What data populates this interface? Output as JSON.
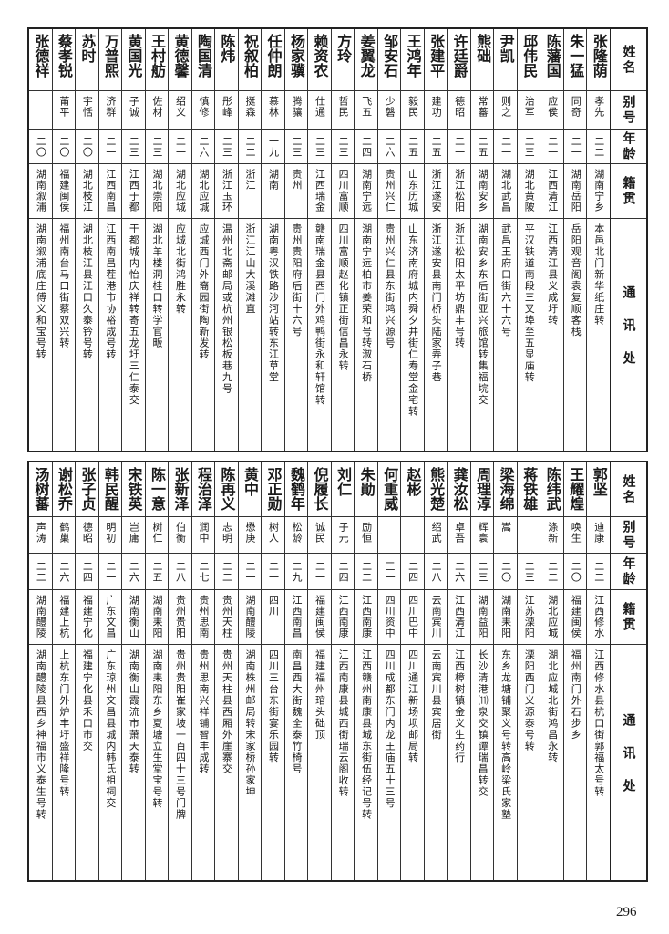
{
  "headers": {
    "name": "姓名",
    "alias": "别号",
    "age": "年龄",
    "native": "籍贯",
    "address": "通讯处"
  },
  "top_table": [
    {
      "name": "张隆荫",
      "alias": "孝先",
      "age": "二二",
      "native": "湖南宁乡",
      "address": "本邑北门新华纸庄转"
    },
    {
      "name": "朱一猛",
      "alias": "同奇",
      "age": "二一",
      "native": "湖南岳阳",
      "address": "岳阳观音阁袁复顺客栈"
    },
    {
      "name": "陈藩国",
      "alias": "应侯",
      "age": "二一",
      "native": "江西清江",
      "address": "江西清江县义成圩转"
    },
    {
      "name": "邱伟民",
      "alias": "治军",
      "age": "二三",
      "native": "湖北黄陂",
      "address": "平汉铁道南段三叉埠至五显庙转"
    },
    {
      "name": "尹凯",
      "alias": "则之",
      "age": "二一",
      "native": "湖北武昌",
      "address": "武昌王府口街六十六号"
    },
    {
      "name": "熊础",
      "alias": "常蕃",
      "age": "二五",
      "native": "湖南安乡",
      "address": "湖南安乡东后街亚兴旅馆转集福垸交"
    },
    {
      "name": "许廷爵",
      "alias": "德昭",
      "age": "二一",
      "native": "浙江松阳",
      "address": "浙江松阳太平坊鼎丰号转"
    },
    {
      "name": "张建平",
      "alias": "建功",
      "age": "二五",
      "native": "浙江遂安",
      "address": "浙江遂安县南门桥头陆家弄子巷"
    },
    {
      "name": "王鸿年",
      "alias": "毅民",
      "age": "二五",
      "native": "山东历城",
      "address": "山东济南府城内舜夕井街仁寿堂金宅转"
    },
    {
      "name": "邹安石",
      "alias": "少磐",
      "age": "二六",
      "native": "贵州兴仁",
      "address": "贵州兴仁县东街鸿兴源号"
    },
    {
      "name": "姜翼龙",
      "alias": "飞五",
      "age": "二四",
      "native": "湖南宁远",
      "address": "湖南宁远柏市姜荣和号转淑石桥"
    },
    {
      "name": "方玲",
      "alias": "哲民",
      "age": "二三",
      "native": "四川富顺",
      "address": "四川富顺赵化镇正街信昌永转"
    },
    {
      "name": "赖资农",
      "alias": "仕通",
      "age": "二三",
      "native": "江西瑞金",
      "address": "赣南瑞金县西门外鸡鸭街永和轩馆转"
    },
    {
      "name": "杨家骥",
      "alias": "腾骧",
      "age": "二三",
      "native": "贵州",
      "address": "贵州贵阳府后街十六号"
    },
    {
      "name": "任仲朗",
      "alias": "慕林",
      "age": "一九",
      "native": "湖南",
      "address": "湖南粤汉铁路沙河站转东江草堂"
    },
    {
      "name": "祝叙柏",
      "alias": "挺森",
      "age": "二二",
      "native": "浙江",
      "address": "浙江江山大溪滩直"
    },
    {
      "name": "陈炜",
      "alias": "彤峰",
      "age": "二三",
      "native": "浙江玉环",
      "address": "温州北斋邮局或杭州银松板巷九号"
    },
    {
      "name": "陶国清",
      "alias": "慎修",
      "age": "二六",
      "native": "湖北应城",
      "address": "应城西门外裔园街陶新发转"
    },
    {
      "name": "黄德馨",
      "alias": "绍义",
      "age": "二一",
      "native": "湖北应城",
      "address": "应城北街鸿胜永转"
    },
    {
      "name": "王村舫",
      "alias": "佐材",
      "age": "二三",
      "native": "湖北崇阳",
      "address": "湖北羊楼洞桂口转学官畈"
    },
    {
      "name": "黄国光",
      "alias": "子诚",
      "age": "二三",
      "native": "江西于都",
      "address": "于都城内怡庆祥转寄五龙圩三仁泰交"
    },
    {
      "name": "万普熙",
      "alias": "济群",
      "age": "二一",
      "native": "江西南昌",
      "address": "江西南昌茬港市协裕成号转"
    },
    {
      "name": "苏时",
      "alias": "宇恬",
      "age": "二〇",
      "native": "湖北枝江",
      "address": "湖北枝江县江口久泰钤号转"
    },
    {
      "name": "蔡孝锐",
      "alias": "莆平",
      "age": "二〇",
      "native": "福建闽侯",
      "address": "福州南台马口街蔡双兴转"
    },
    {
      "name": "张德祥",
      "alias": "",
      "age": "二〇",
      "native": "湖南溆浦",
      "address": "湖南溆浦底庄傅义和宝号转"
    }
  ],
  "bottom_table": [
    {
      "name": "郭坚",
      "alias": "迪康",
      "age": "二二",
      "native": "江西修水",
      "address": "江西修水县杭口街郭福太号转"
    },
    {
      "name": "王耀煌",
      "alias": "唤生",
      "age": "二〇",
      "native": "福建闽侯",
      "address": "福州南门外石步乡"
    },
    {
      "name": "陈纬武",
      "alias": "涤新",
      "age": "二二",
      "native": "湖北应城",
      "address": "湖北应城北街鸿昌永转"
    },
    {
      "name": "蒋铁雄",
      "alias": "",
      "age": "二三",
      "native": "江苏溧阳",
      "address": "溧阳西门义源泰号转"
    },
    {
      "name": "梁海绵",
      "alias": "嵩",
      "age": "二〇",
      "native": "湖南耒阳",
      "address": "东乡龙塘铺聚义号转高岭梁氏家塾"
    },
    {
      "name": "周理淳",
      "alias": "辉寰",
      "age": "二三",
      "native": "湖南益阳",
      "address": "长沙清港⑾泉交镇谭瑞昌转交"
    },
    {
      "name": "龚汝松",
      "alias": "卓吾",
      "age": "二六",
      "native": "江西清江",
      "address": "江西樟树镇金义生药行"
    },
    {
      "name": "熊光楚",
      "alias": "绍武",
      "age": "二八",
      "native": "云南宾川",
      "address": "云南宾川县宾居街"
    },
    {
      "name": "赵彬",
      "alias": "",
      "age": "二四",
      "native": "四川巴中",
      "address": "四川通江新场坝邮局转"
    },
    {
      "name": "何重威",
      "alias": "",
      "age": "三一",
      "native": "四川资中",
      "address": "四川成都东门内龙王庙五十三号"
    },
    {
      "name": "朱勛",
      "alias": "励恒",
      "age": "二二",
      "native": "江西南康",
      "address": "江西赣州南康县城东街伍经记号转"
    },
    {
      "name": "刘仁",
      "alias": "子元",
      "age": "二四",
      "native": "江西南康",
      "address": "江西南康县城西街瑞云阁收转"
    },
    {
      "name": "倪履长",
      "alias": "诚民",
      "age": "二一",
      "native": "福建闽侯",
      "address": "福建福州琯头础顶"
    },
    {
      "name": "魏鹤年",
      "alias": "松龄",
      "age": "二九",
      "native": "江西南昌",
      "address": "南昌西大街魏全泰竹椅号"
    },
    {
      "name": "邓正勋",
      "alias": "树人",
      "age": "二一",
      "native": "四川",
      "address": "四川三台东街宴乐园转"
    },
    {
      "name": "黄中",
      "alias": "懋庚",
      "age": "二一",
      "native": "湖南醴陵",
      "address": "湖南株州邮局转宋家桥孙家坤"
    },
    {
      "name": "陈再义",
      "alias": "志明",
      "age": "二二",
      "native": "贵州天柱",
      "address": "贵州天柱县西厢外崖寨交"
    },
    {
      "name": "程治泽",
      "alias": "润中",
      "age": "二七",
      "native": "贵州思南",
      "address": "贵州思南兴祥铺智丰成转"
    },
    {
      "name": "张新泽",
      "alias": "伯衡",
      "age": "二八",
      "native": "贵州贵阳",
      "address": "贵州贵阳崔家坡一百四十三号门牌"
    },
    {
      "name": "陈一意",
      "alias": "树仁",
      "age": "二五",
      "native": "湖南耒阳",
      "address": "湖南耒阳东乡夏塘立生堂宝号转"
    },
    {
      "name": "宋铁英",
      "alias": "岂庸",
      "age": "二六",
      "native": "湖南衡山",
      "address": "湖南衡山霞流市萧天泰转"
    },
    {
      "name": "韩民醒",
      "alias": "明初",
      "age": "二一",
      "native": "广东文昌",
      "address": "广东琼州文昌县城内韩氏祖祠交"
    },
    {
      "name": "张子贞",
      "alias": "德昭",
      "age": "二四",
      "native": "福建宁化",
      "address": "福建宁化县禾口市交"
    },
    {
      "name": "谢松乔",
      "alias": "鹤巢",
      "age": "二六",
      "native": "福建上杭",
      "address": "上杭东门外炉丰圩盛祥隆号转"
    },
    {
      "name": "汤树蕃",
      "alias": "声涛",
      "age": "二二",
      "native": "湖南醴陵",
      "address": "湖南醴陵县西乡神福市义泰生号转"
    }
  ],
  "page_number": "296"
}
